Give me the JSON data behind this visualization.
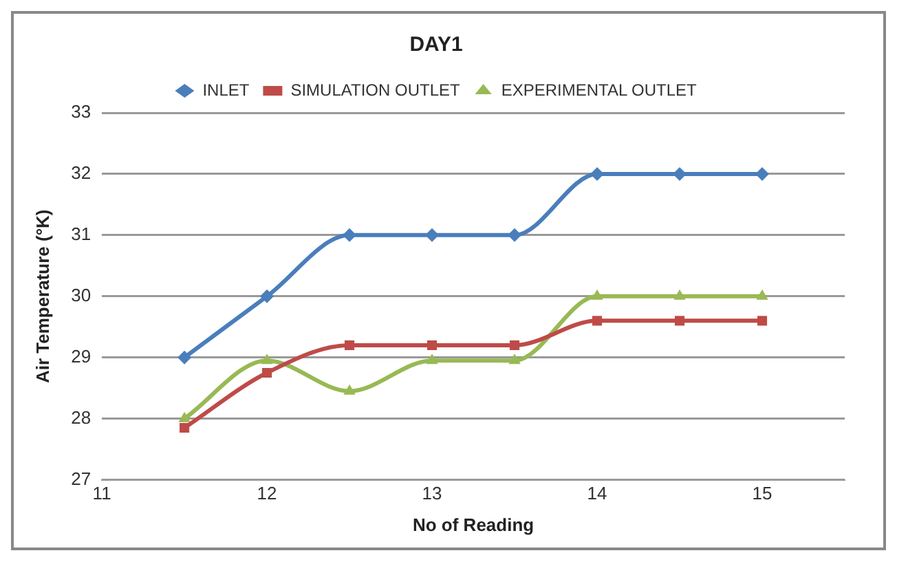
{
  "chart_data": {
    "type": "line",
    "title": "DAY1",
    "xlabel": "No of Reading",
    "ylabel": "Air Temperature (°K)",
    "x": [
      11.5,
      12,
      12.5,
      13,
      13.5,
      14,
      14.5,
      15
    ],
    "xlim": [
      11,
      15.5
    ],
    "xticks": [
      11,
      12,
      13,
      14,
      15
    ],
    "ylim": [
      27,
      33
    ],
    "yticks": [
      27,
      28,
      29,
      30,
      31,
      32,
      33
    ],
    "grid": "y",
    "legend": "top",
    "series": [
      {
        "name": "INLET",
        "color": "#4a7ebb",
        "marker": "diamond",
        "values": [
          29,
          30,
          31,
          31,
          31,
          32,
          32,
          32
        ]
      },
      {
        "name": "SIMULATION OUTLET",
        "color": "#be4b48",
        "marker": "square",
        "values": [
          27.85,
          28.75,
          29.2,
          29.2,
          29.2,
          29.6,
          29.6,
          29.6
        ]
      },
      {
        "name": "EXPERIMENTAL OUTLET",
        "color": "#98b954",
        "marker": "triangle",
        "values": [
          28,
          28.95,
          28.45,
          28.95,
          28.95,
          30,
          30,
          30
        ]
      }
    ]
  }
}
